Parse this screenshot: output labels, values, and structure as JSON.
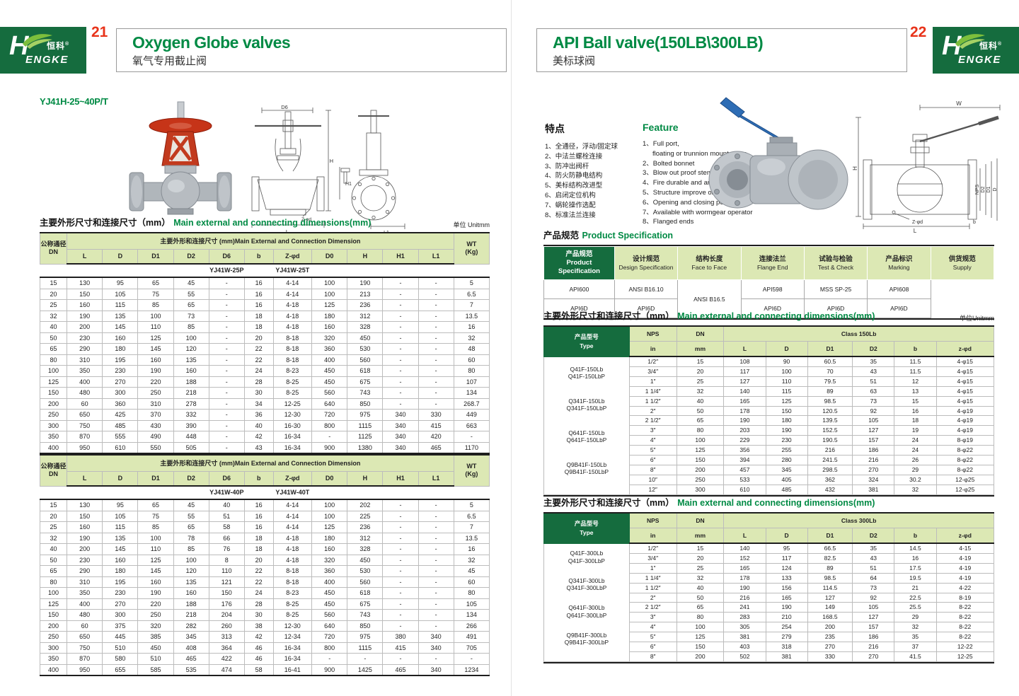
{
  "brand": {
    "logo_h": "H",
    "logo_en_rest": "ENGKE",
    "logo_cn": "恒科",
    "logo_reg": "®"
  },
  "colors": {
    "brand_green": "#156c3e",
    "accent_green": "#008a44",
    "table_header_green": "#dce8b4",
    "page_number_red": "#e8331a"
  },
  "left_page": {
    "page_number": "21",
    "title": "Oxygen Globe valves",
    "subtitle": "氧气专用截止阀",
    "model_code": "YJ41H-25~40P/T",
    "dim_section": {
      "title_zh": "主要外形尺寸和连接尺寸（mm）",
      "title_en": "Main external and connecting dimensions(mm)",
      "unit": "单位 Unitmm",
      "header": {
        "dn_zh": "公称通径",
        "dn_en": "DN",
        "span": "主要外形和连接尺寸 (mm)Main External and Connection Dimension",
        "cols": [
          "L",
          "D",
          "D1",
          "D2",
          "D6",
          "b",
          "Z-φd",
          "D0",
          "H",
          "H1",
          "L1"
        ],
        "wt": "WT",
        "wt_sub": "(Kg)"
      },
      "table1": {
        "model_p": "YJ41W-25P",
        "model_t": "YJ41W-25T",
        "rows": [
          [
            "15",
            "130",
            "95",
            "65",
            "45",
            "-",
            "16",
            "4-14",
            "100",
            "190",
            "-",
            "-",
            "5"
          ],
          [
            "20",
            "150",
            "105",
            "75",
            "55",
            "-",
            "16",
            "4-14",
            "100",
            "213",
            "-",
            "-",
            "6.5"
          ],
          [
            "25",
            "160",
            "115",
            "85",
            "65",
            "-",
            "16",
            "4-18",
            "125",
            "236",
            "-",
            "-",
            "7"
          ],
          [
            "32",
            "190",
            "135",
            "100",
            "73",
            "-",
            "18",
            "4-18",
            "180",
            "312",
            "-",
            "-",
            "13.5"
          ],
          [
            "40",
            "200",
            "145",
            "110",
            "85",
            "-",
            "18",
            "4-18",
            "160",
            "328",
            "-",
            "-",
            "16"
          ],
          [
            "50",
            "230",
            "160",
            "125",
            "100",
            "-",
            "20",
            "8-18",
            "320",
            "450",
            "-",
            "-",
            "32"
          ],
          [
            "65",
            "290",
            "180",
            "145",
            "120",
            "-",
            "22",
            "8-18",
            "360",
            "530",
            "-",
            "-",
            "48"
          ],
          [
            "80",
            "310",
            "195",
            "160",
            "135",
            "-",
            "22",
            "8-18",
            "400",
            "560",
            "-",
            "-",
            "60"
          ],
          [
            "100",
            "350",
            "230",
            "190",
            "160",
            "-",
            "24",
            "8-23",
            "450",
            "618",
            "-",
            "-",
            "80"
          ],
          [
            "125",
            "400",
            "270",
            "220",
            "188",
            "-",
            "28",
            "8-25",
            "450",
            "675",
            "-",
            "-",
            "107"
          ],
          [
            "150",
            "480",
            "300",
            "250",
            "218",
            "-",
            "30",
            "8-25",
            "560",
            "743",
            "-",
            "-",
            "134"
          ],
          [
            "200",
            "60",
            "360",
            "310",
            "278",
            "-",
            "34",
            "12-25",
            "640",
            "850",
            "-",
            "-",
            "268.7"
          ],
          [
            "250",
            "650",
            "425",
            "370",
            "332",
            "-",
            "36",
            "12-30",
            "720",
            "975",
            "340",
            "330",
            "449"
          ],
          [
            "300",
            "750",
            "485",
            "430",
            "390",
            "-",
            "40",
            "16-30",
            "800",
            "1115",
            "340",
            "415",
            "663"
          ],
          [
            "350",
            "870",
            "555",
            "490",
            "448",
            "-",
            "42",
            "16-34",
            "-",
            "1125",
            "340",
            "420",
            "-"
          ],
          [
            "400",
            "950",
            "610",
            "550",
            "505",
            "-",
            "43",
            "16-34",
            "900",
            "1380",
            "340",
            "465",
            "1170"
          ]
        ]
      },
      "table2": {
        "model_p": "YJ41W-40P",
        "model_t": "YJ41W-40T",
        "rows": [
          [
            "15",
            "130",
            "95",
            "65",
            "45",
            "40",
            "16",
            "4-14",
            "100",
            "202",
            "-",
            "-",
            "5"
          ],
          [
            "20",
            "150",
            "105",
            "75",
            "55",
            "51",
            "16",
            "4-14",
            "100",
            "225",
            "-",
            "-",
            "6.5"
          ],
          [
            "25",
            "160",
            "115",
            "85",
            "65",
            "58",
            "16",
            "4-14",
            "125",
            "236",
            "-",
            "-",
            "7"
          ],
          [
            "32",
            "190",
            "135",
            "100",
            "78",
            "66",
            "18",
            "4-18",
            "180",
            "312",
            "-",
            "-",
            "13.5"
          ],
          [
            "40",
            "200",
            "145",
            "110",
            "85",
            "76",
            "18",
            "4-18",
            "160",
            "328",
            "-",
            "-",
            "16"
          ],
          [
            "50",
            "230",
            "160",
            "125",
            "100",
            "8",
            "20",
            "4-18",
            "320",
            "450",
            "-",
            "-",
            "32"
          ],
          [
            "65",
            "290",
            "180",
            "145",
            "120",
            "110",
            "22",
            "8-18",
            "360",
            "530",
            "-",
            "-",
            "45"
          ],
          [
            "80",
            "310",
            "195",
            "160",
            "135",
            "121",
            "22",
            "8-18",
            "400",
            "560",
            "-",
            "-",
            "60"
          ],
          [
            "100",
            "350",
            "230",
            "190",
            "160",
            "150",
            "24",
            "8-23",
            "450",
            "618",
            "-",
            "-",
            "80"
          ],
          [
            "125",
            "400",
            "270",
            "220",
            "188",
            "176",
            "28",
            "8-25",
            "450",
            "675",
            "-",
            "-",
            "105"
          ],
          [
            "150",
            "480",
            "300",
            "250",
            "218",
            "204",
            "30",
            "8-25",
            "560",
            "743",
            "-",
            "-",
            "134"
          ],
          [
            "200",
            "60",
            "375",
            "320",
            "282",
            "260",
            "38",
            "12-30",
            "640",
            "850",
            "-",
            "-",
            "266"
          ],
          [
            "250",
            "650",
            "445",
            "385",
            "345",
            "313",
            "42",
            "12-34",
            "720",
            "975",
            "380",
            "340",
            "491"
          ],
          [
            "300",
            "750",
            "510",
            "450",
            "408",
            "364",
            "46",
            "16-34",
            "800",
            "1115",
            "415",
            "340",
            "705"
          ],
          [
            "350",
            "870",
            "580",
            "510",
            "465",
            "422",
            "46",
            "16-34",
            "-",
            "-",
            "-",
            "-",
            "-"
          ],
          [
            "400",
            "950",
            "655",
            "585",
            "535",
            "474",
            "58",
            "16-41",
            "900",
            "1425",
            "465",
            "340",
            "1234"
          ]
        ]
      }
    }
  },
  "right_page": {
    "page_number": "22",
    "title": "API Ball valve(150LB\\300LB)",
    "subtitle": "美标球阀",
    "features": {
      "title_zh": "特点",
      "items_zh": [
        "1、全通径，浮动/固定球",
        "2、中法兰螺栓连接",
        "3、防冲出阀杆",
        "4、防火防静电结构",
        "5、美标结构改进型",
        "6、启闭定位机构",
        "7、蜗轮操作选配",
        "8、标准法兰连接"
      ],
      "title_en": "Feature",
      "items_en": [
        "1、Full port,",
        "floating or trunnion mounte type",
        "2、Bolted bonnet",
        "3、Blow out proof stem",
        "4、Fire durable and anti static safety",
        "5、Structure improve on api",
        "6、Opening and closing position",
        "7、Available with wormgear operator",
        "8、Flanged ends"
      ]
    },
    "spec": {
      "title_zh": "产品规范",
      "title_en": "Product Specification",
      "corner_zh": "产品规范",
      "corner_en1": "Product",
      "corner_en2": "Specification",
      "columns": [
        {
          "zh": "设计规范",
          "en": "Design Specification"
        },
        {
          "zh": "结构长度",
          "en": "Face to Face"
        },
        {
          "zh": "连接法兰",
          "en": "Flange End"
        },
        {
          "zh": "试验与检验",
          "en": "Test & Check"
        },
        {
          "zh": "产品标识",
          "en": "Marking"
        },
        {
          "zh": "供货规范",
          "en": "Supply"
        }
      ],
      "row1_design": "API600",
      "row1_face": "ANSI B16.10",
      "flange_span": "ANSI B16.5",
      "row1_test": "API598",
      "row1_marking": "MSS SP-25",
      "row1_supply": "API608",
      "row2": [
        "API6D",
        "API6D",
        "API6D",
        "API6D",
        "API6D"
      ]
    },
    "dim150": {
      "title_zh": "主要外形尺寸和连接尺寸（mm）",
      "title_en": "Main external and connecting dimensions(mm)",
      "unit": "单位Unitmm",
      "header": {
        "type_zh": "产品型号",
        "type_en": "Type",
        "nps": "NPS",
        "nps_sub": "in",
        "dn": "DN",
        "dn_sub": "mm",
        "class_label": "Class 150Lb",
        "cols": [
          "L",
          "D",
          "D1",
          "D2",
          "b",
          "z-φd"
        ]
      },
      "type_groups": [
        [
          "Q41F-150Lb",
          "Q41F-150LbP"
        ],
        [
          "Q341F-150Lb",
          "Q341F-150LbP"
        ],
        [
          "Q641F-150Lb",
          "Q641F-150LbP"
        ],
        [
          "Q9B41F-150Lb",
          "Q9B41F-150LbP"
        ]
      ],
      "rows": [
        [
          "1/2″",
          "15",
          "108",
          "90",
          "60.5",
          "35",
          "11.5",
          "4-φ15"
        ],
        [
          "3/4″",
          "20",
          "117",
          "100",
          "70",
          "43",
          "11.5",
          "4-φ15"
        ],
        [
          "1″",
          "25",
          "127",
          "110",
          "79.5",
          "51",
          "12",
          "4-φ15"
        ],
        [
          "1 1/4″",
          "32",
          "140",
          "115",
          "89",
          "63",
          "13",
          "4-φ15"
        ],
        [
          "1 1/2″",
          "40",
          "165",
          "125",
          "98.5",
          "73",
          "15",
          "4-φ15"
        ],
        [
          "2″",
          "50",
          "178",
          "150",
          "120.5",
          "92",
          "16",
          "4-φ19"
        ],
        [
          "2 1/2″",
          "65",
          "190",
          "180",
          "139.5",
          "105",
          "18",
          "4-φ19"
        ],
        [
          "3″",
          "80",
          "203",
          "190",
          "152.5",
          "127",
          "19",
          "4-φ19"
        ],
        [
          "4″",
          "100",
          "229",
          "230",
          "190.5",
          "157",
          "24",
          "8-φ19"
        ],
        [
          "5″",
          "125",
          "356",
          "255",
          "216",
          "186",
          "24",
          "8-φ22"
        ],
        [
          "6″",
          "150",
          "394",
          "280",
          "241.5",
          "216",
          "26",
          "8-φ22"
        ],
        [
          "8″",
          "200",
          "457",
          "345",
          "298.5",
          "270",
          "29",
          "8-φ22"
        ],
        [
          "10″",
          "250",
          "533",
          "405",
          "362",
          "324",
          "30.2",
          "12-φ25"
        ],
        [
          "12″",
          "300",
          "610",
          "485",
          "432",
          "381",
          "32",
          "12-φ25"
        ]
      ]
    },
    "dim300": {
      "title_zh": "主要外形尺寸和连接尺寸（mm）",
      "title_en": "Main external and connecting dimensions(mm)",
      "header": {
        "type_zh": "产品型号",
        "type_en": "Type",
        "nps": "NPS",
        "nps_sub": "in",
        "dn": "DN",
        "dn_sub": "mm",
        "class_label": "Class 300Lb",
        "cols": [
          "L",
          "D",
          "D1",
          "D2",
          "b",
          "z-φd"
        ]
      },
      "type_groups": [
        [
          "Q41F-300Lb",
          "Q41F-300LbP"
        ],
        [
          "Q341F-300Lb",
          "Q341F-300LbP"
        ],
        [
          "Q641F-300Lb",
          "Q641F-300LbP"
        ],
        [
          "Q9B41F-300Lb",
          "Q9B41F-300LbP"
        ]
      ],
      "rows": [
        [
          "1/2″",
          "15",
          "140",
          "95",
          "66.5",
          "35",
          "14.5",
          "4-15"
        ],
        [
          "3/4″",
          "20",
          "152",
          "117",
          "82.5",
          "43",
          "16",
          "4-19"
        ],
        [
          "1″",
          "25",
          "165",
          "124",
          "89",
          "51",
          "17.5",
          "4-19"
        ],
        [
          "1 1/4″",
          "32",
          "178",
          "133",
          "98.5",
          "64",
          "19.5",
          "4-19"
        ],
        [
          "1 1/2″",
          "40",
          "190",
          "156",
          "114.5",
          "73",
          "21",
          "4-22"
        ],
        [
          "2″",
          "50",
          "216",
          "165",
          "127",
          "92",
          "22.5",
          "8-19"
        ],
        [
          "2 1/2″",
          "65",
          "241",
          "190",
          "149",
          "105",
          "25.5",
          "8-22"
        ],
        [
          "3″",
          "80",
          "283",
          "210",
          "168.5",
          "127",
          "29",
          "8-22"
        ],
        [
          "4″",
          "100",
          "305",
          "254",
          "200",
          "157",
          "32",
          "8-22"
        ],
        [
          "5″",
          "125",
          "381",
          "279",
          "235",
          "186",
          "35",
          "8-22"
        ],
        [
          "6″",
          "150",
          "403",
          "318",
          "270",
          "216",
          "37",
          "12-22"
        ],
        [
          "8″",
          "200",
          "502",
          "381",
          "330",
          "270",
          "41.5",
          "12-25"
        ]
      ]
    }
  },
  "drawings": {
    "globe_section": {
      "d6": "D6",
      "h": "H",
      "l": "L",
      "zphid": "Z-φd"
    },
    "globe_front": {
      "h1": "H1",
      "l1": "L1"
    },
    "ball_section": {
      "w": "W",
      "h": "H",
      "nps": "NPS",
      "d2": "D2",
      "d1": "D1",
      "d": "D",
      "zphid": "Z-φd",
      "b": "b",
      "l": "L"
    }
  }
}
